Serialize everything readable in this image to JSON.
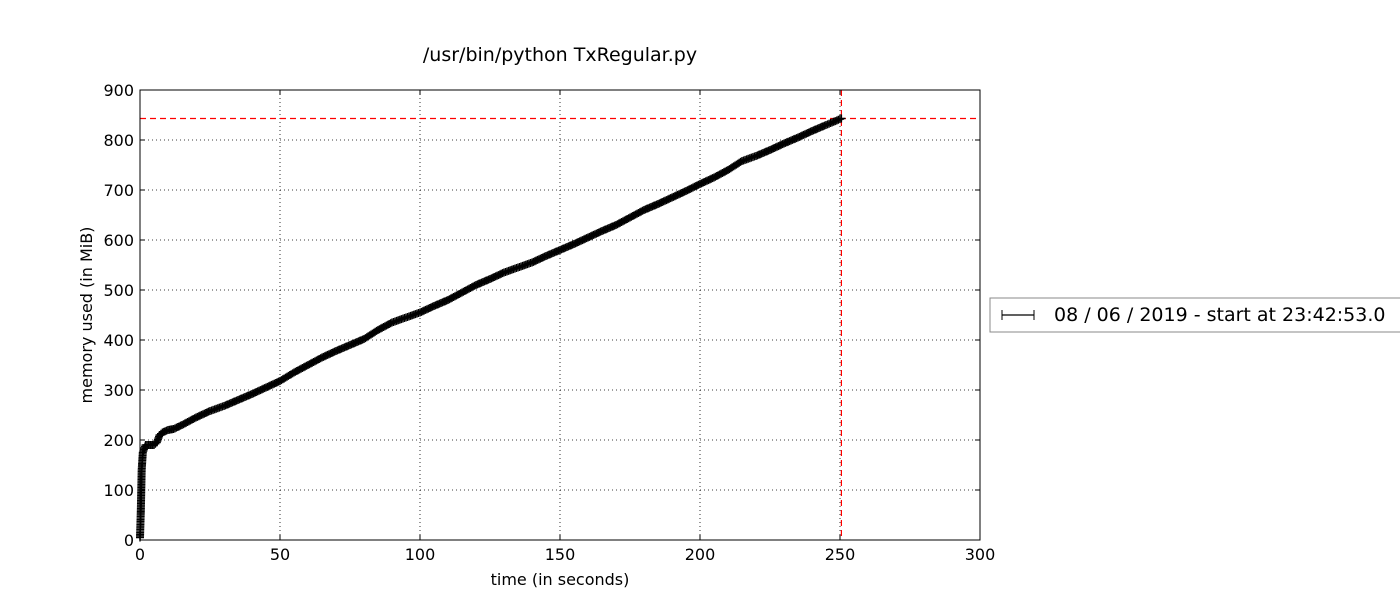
{
  "chart_data": {
    "type": "line",
    "title": "/usr/bin/python TxRegular.py",
    "xlabel": "time (in seconds)",
    "ylabel": "memory used (in MiB)",
    "xlim": [
      0,
      300
    ],
    "ylim": [
      0,
      900
    ],
    "xticks": [
      0,
      50,
      100,
      150,
      200,
      250,
      300
    ],
    "yticks": [
      0,
      100,
      200,
      300,
      400,
      500,
      600,
      700,
      800,
      900
    ],
    "grid": true,
    "legend_position": "right, outside plot",
    "series": [
      {
        "name": "08 / 06 / 2019 - start at 23:42:53.0",
        "color": "#000000",
        "marker": "plus",
        "x": [
          0,
          0.3,
          0.6,
          1,
          2,
          3,
          4,
          5,
          6,
          7,
          8,
          10,
          12,
          15,
          20,
          25,
          30,
          35,
          40,
          45,
          50,
          55,
          60,
          65,
          70,
          75,
          80,
          85,
          90,
          95,
          100,
          105,
          110,
          115,
          120,
          125,
          130,
          135,
          140,
          145,
          150,
          155,
          160,
          165,
          170,
          175,
          180,
          185,
          190,
          195,
          200,
          205,
          210,
          215,
          220,
          225,
          230,
          235,
          240,
          245,
          250.5
        ],
        "y": [
          5,
          60,
          140,
          175,
          190,
          190,
          190,
          190,
          195,
          210,
          215,
          220,
          222,
          230,
          245,
          258,
          268,
          280,
          292,
          305,
          318,
          335,
          350,
          365,
          378,
          390,
          402,
          420,
          435,
          445,
          455,
          468,
          480,
          495,
          510,
          522,
          535,
          545,
          555,
          568,
          580,
          592,
          605,
          618,
          630,
          645,
          660,
          672,
          685,
          698,
          712,
          725,
          740,
          758,
          768,
          780,
          793,
          805,
          818,
          830,
          843
        ]
      }
    ],
    "reference_lines": {
      "color": "#ff0000",
      "horizontal_y": 843,
      "vertical_x": 250.5
    }
  }
}
